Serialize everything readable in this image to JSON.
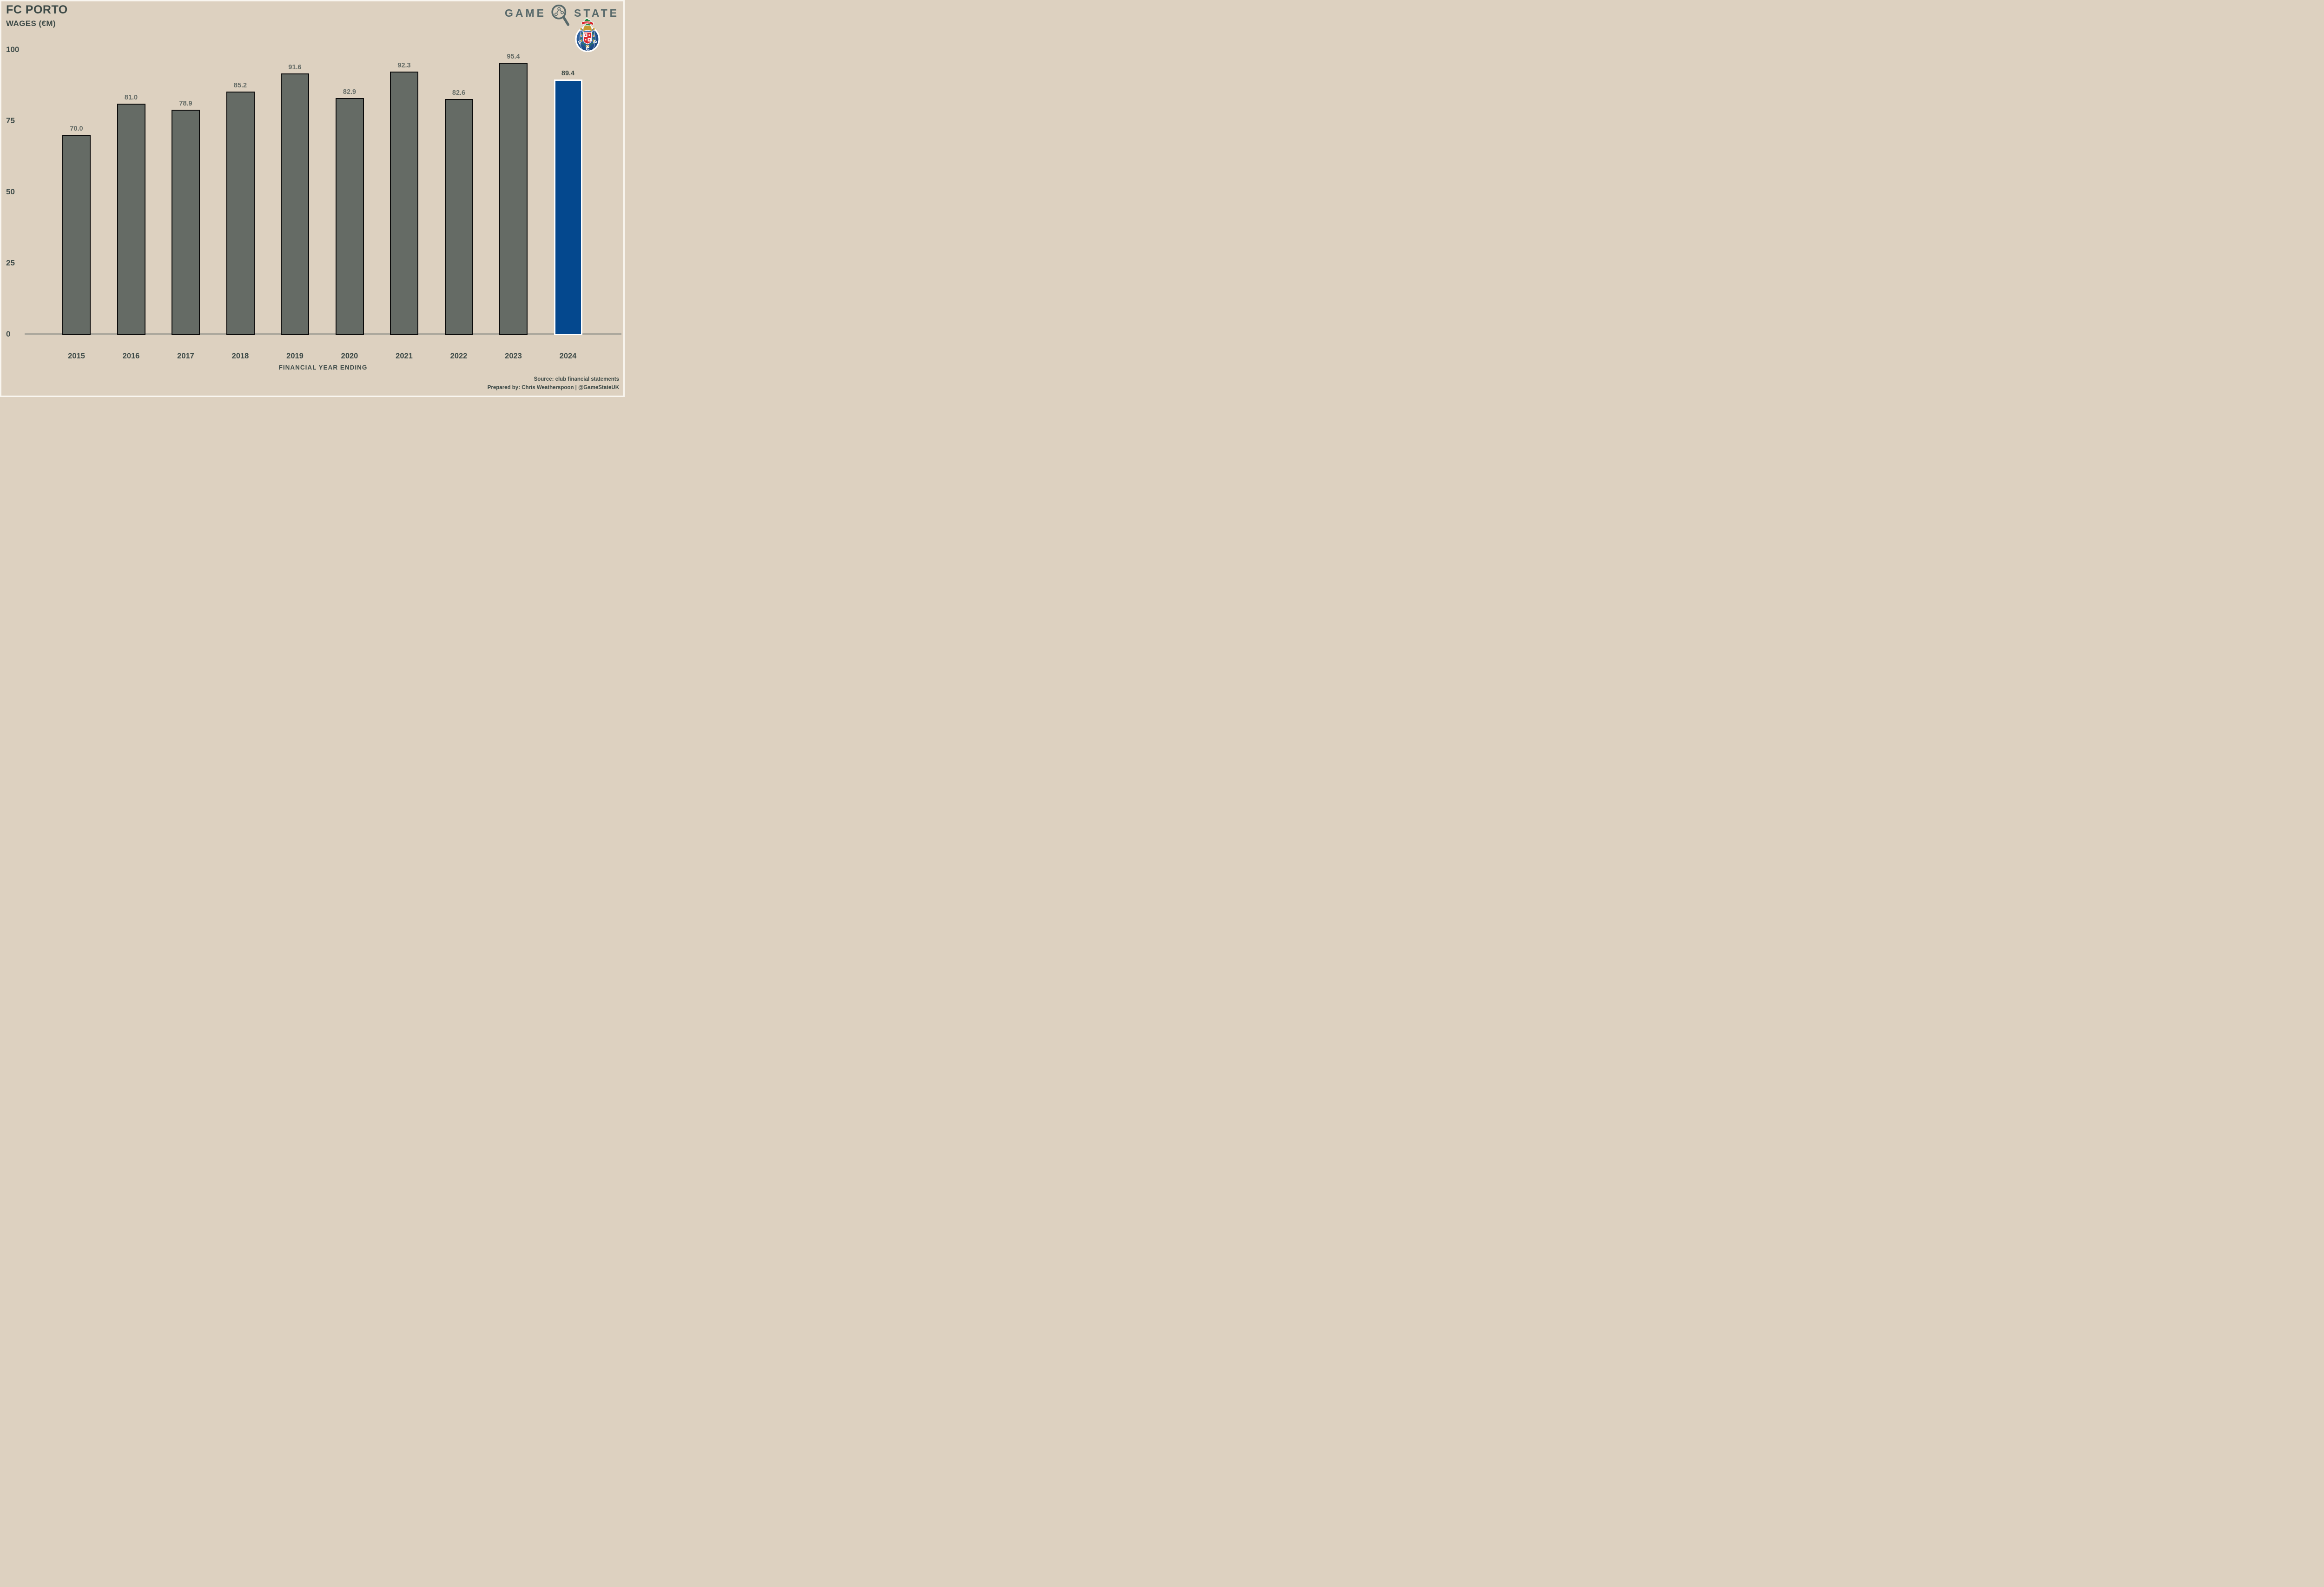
{
  "header": {
    "title": "FC PORTO",
    "subtitle": "WAGES (€M)"
  },
  "branding": {
    "game": "GAME",
    "state": "STATE",
    "logo_icon": "magnifier-share-icon",
    "crest_icon": "fc-porto-crest",
    "crest_motto": "INVICTA",
    "crest_initials": [
      "F",
      "C",
      "P"
    ]
  },
  "footer": {
    "source_line": "Source: club financial statements",
    "prepared_line": "Prepared by: Chris Weatherspoon | @GameStateUK"
  },
  "chart_data": {
    "type": "bar",
    "title": "FC PORTO WAGES (€M)",
    "categories": [
      "2015",
      "2016",
      "2017",
      "2018",
      "2019",
      "2020",
      "2021",
      "2022",
      "2023",
      "2024"
    ],
    "values": [
      70.0,
      81.0,
      78.9,
      85.2,
      91.6,
      82.9,
      92.3,
      82.6,
      95.4,
      89.4
    ],
    "value_labels": [
      "70.0",
      "81.0",
      "78.9",
      "85.2",
      "91.6",
      "82.9",
      "92.3",
      "82.6",
      "95.4",
      "89.4"
    ],
    "xlabel": "FINANCIAL YEAR ENDING",
    "ylabel": "",
    "ylim": [
      0,
      100
    ],
    "yticks": [
      0,
      25,
      50,
      75,
      100
    ],
    "ytick_labels": [
      "0",
      "25",
      "50",
      "75",
      "100"
    ],
    "grid": false,
    "legend": null,
    "highlight_index": 9,
    "bar_color_default": "#656B65",
    "bar_border_default": "#0B0B0B",
    "value_label_color_default": "#666D67",
    "bar_color_highlight": "#04488E",
    "bar_border_highlight": "#FFFFFF",
    "value_label_color_highlight": "#3D4A45"
  },
  "colors": {
    "background": "#DDD1C0",
    "text_dark": "#3D4A47",
    "axis_line": "#A9A59B",
    "logo_text": "#58696A"
  }
}
